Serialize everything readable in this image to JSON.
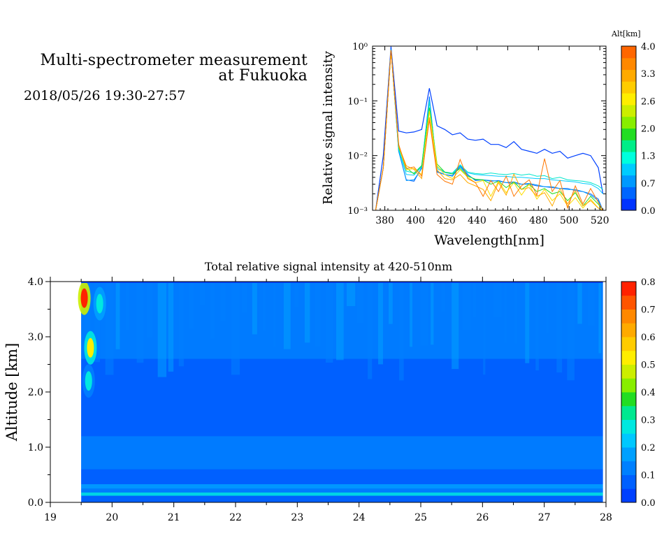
{
  "header": {
    "title_line1": "Multi-spectrometer measurement",
    "title_line2": "at Fukuoka",
    "date_range": "2018/05/26 19:30-27:57"
  },
  "chart_data": [
    {
      "type": "line",
      "title": "",
      "xlabel": "Wavelength[nm]",
      "ylabel": "Relative signal intensity",
      "xlim": [
        372,
        524
      ],
      "ylim": [
        0.001,
        1
      ],
      "yscale": "log",
      "x_ticks": [
        "380",
        "400",
        "420",
        "440",
        "460",
        "480",
        "500",
        "520"
      ],
      "y_ticks": [
        "10⁻³",
        "10⁻²",
        "10⁻¹",
        "10⁰"
      ],
      "grid": false,
      "colorbar": {
        "label": "Alt[km]",
        "ticks": [
          "0.0",
          "0.7",
          "1.3",
          "2.0",
          "2.6",
          "3.3",
          "4.0"
        ],
        "colors": [
          "#0033ff",
          "#0066ff",
          "#0099ff",
          "#00ccff",
          "#00ffdd",
          "#00ee88",
          "#22dd22",
          "#88ee00",
          "#ccee00",
          "#ffee00",
          "#ffcc00",
          "#ffaa00",
          "#ff8800",
          "#ff6600"
        ]
      },
      "x": [
        374,
        379,
        384,
        389,
        394,
        399,
        404,
        409,
        414,
        419,
        424,
        429,
        434,
        439,
        444,
        449,
        454,
        459,
        464,
        469,
        474,
        479,
        484,
        489,
        494,
        499,
        504,
        509,
        514,
        519,
        522
      ],
      "series": [
        {
          "alt_km": 0.0,
          "color": "#0040ff",
          "values": [
            0.001,
            0.01,
            0.98,
            0.028,
            0.026,
            0.027,
            0.03,
            0.17,
            0.035,
            0.03,
            0.024,
            0.026,
            0.02,
            0.019,
            0.02,
            0.016,
            0.016,
            0.014,
            0.018,
            0.013,
            0.012,
            0.011,
            0.013,
            0.011,
            0.012,
            0.009,
            0.01,
            0.011,
            0.01,
            0.006,
            0.002
          ]
        },
        {
          "alt_km": 0.3,
          "color": "#0066ff",
          "values": [
            0.001,
            0.006,
            0.9,
            0.012,
            0.0036,
            0.0034,
            0.006,
            0.12,
            0.005,
            0.0045,
            0.0043,
            0.0065,
            0.0045,
            0.0035,
            0.0036,
            0.0034,
            0.0035,
            0.0032,
            0.0033,
            0.003,
            0.003,
            0.0028,
            0.0027,
            0.0026,
            0.0025,
            0.0025,
            0.0023,
            0.0022,
            0.002,
            0.0016,
            0.001
          ]
        },
        {
          "alt_km": 0.7,
          "color": "#0099ff",
          "values": [
            0.001,
            0.006,
            0.88,
            0.012,
            0.0035,
            0.0036,
            0.0058,
            0.11,
            0.0052,
            0.0045,
            0.0042,
            0.0062,
            0.0044,
            0.0036,
            0.0036,
            0.0035,
            0.0034,
            0.0032,
            0.0031,
            0.003,
            0.0031,
            0.0029,
            0.0027,
            0.0027,
            0.0025,
            0.0024,
            0.0024,
            0.0022,
            0.0019,
            0.0015,
            0.001
          ]
        },
        {
          "alt_km": 1.0,
          "color": "#00ccff",
          "values": [
            0.001,
            0.006,
            0.86,
            0.013,
            0.0045,
            0.0044,
            0.0062,
            0.1,
            0.0058,
            0.0049,
            0.0046,
            0.0066,
            0.0048,
            0.0045,
            0.0044,
            0.0043,
            0.0042,
            0.0042,
            0.004,
            0.004,
            0.0039,
            0.0038,
            0.0038,
            0.0036,
            0.0035,
            0.0034,
            0.0033,
            0.0031,
            0.003,
            0.0025,
            0.002
          ]
        },
        {
          "alt_km": 1.3,
          "color": "#00e6cc",
          "values": [
            0.001,
            0.006,
            0.84,
            0.013,
            0.0052,
            0.0048,
            0.0066,
            0.095,
            0.0062,
            0.005,
            0.0048,
            0.0068,
            0.005,
            0.0047,
            0.0046,
            0.0048,
            0.0046,
            0.0045,
            0.0047,
            0.0044,
            0.0046,
            0.0042,
            0.0043,
            0.0038,
            0.004,
            0.0036,
            0.0035,
            0.0034,
            0.0032,
            0.0028,
            0.0024
          ]
        },
        {
          "alt_km": 2.0,
          "color": "#22dd22",
          "values": [
            0.001,
            0.006,
            0.84,
            0.014,
            0.006,
            0.0046,
            0.0065,
            0.075,
            0.007,
            0.005,
            0.0046,
            0.0058,
            0.0042,
            0.0037,
            0.0036,
            0.003,
            0.0034,
            0.0026,
            0.0033,
            0.0024,
            0.003,
            0.0022,
            0.0025,
            0.002,
            0.0022,
            0.0015,
            0.0021,
            0.0012,
            0.0018,
            0.0013,
            0.001
          ]
        },
        {
          "alt_km": 2.6,
          "color": "#ffdd00",
          "values": [
            0.001,
            0.006,
            0.84,
            0.015,
            0.0055,
            0.0058,
            0.0045,
            0.065,
            0.0065,
            0.0045,
            0.0038,
            0.0055,
            0.004,
            0.0032,
            0.0035,
            0.0018,
            0.0034,
            0.0021,
            0.0032,
            0.0019,
            0.003,
            0.0016,
            0.0024,
            0.0015,
            0.002,
            0.0012,
            0.0017,
            0.0011,
            0.0016,
            0.0011,
            0.001
          ]
        },
        {
          "alt_km": 3.3,
          "color": "#ffaa00",
          "values": [
            0.001,
            0.006,
            0.84,
            0.015,
            0.0065,
            0.0056,
            0.0038,
            0.05,
            0.0055,
            0.0038,
            0.0036,
            0.0045,
            0.0032,
            0.0028,
            0.0024,
            0.0015,
            0.0032,
            0.0019,
            0.0046,
            0.0024,
            0.0026,
            0.0018,
            0.0021,
            0.0012,
            0.0025,
            0.0013,
            0.0023,
            0.0012,
            0.0015,
            0.0011,
            0.001
          ]
        },
        {
          "alt_km": 4.0,
          "color": "#ff7700",
          "values": [
            0.001,
            0.006,
            0.84,
            0.016,
            0.0058,
            0.0062,
            0.0042,
            0.045,
            0.0045,
            0.0034,
            0.003,
            0.0085,
            0.0038,
            0.0032,
            0.0018,
            0.0035,
            0.0022,
            0.0042,
            0.0018,
            0.0028,
            0.0036,
            0.0019,
            0.0088,
            0.0022,
            0.0035,
            0.0011,
            0.0028,
            0.0013,
            0.0025,
            0.0014,
            0.001
          ]
        }
      ]
    },
    {
      "type": "heatmap",
      "title": "Total relative signal intensity at 420-510nm",
      "xlabel": "",
      "ylabel": "Altitude [km]",
      "xlim": [
        19,
        28
      ],
      "ylim": [
        0,
        4
      ],
      "x_ticks": [
        "19",
        "20",
        "21",
        "22",
        "23",
        "24",
        "25",
        "26",
        "27",
        "28"
      ],
      "y_ticks": [
        "0.0",
        "1.0",
        "2.0",
        "3.0",
        "4.0"
      ],
      "data_x_range": [
        19.5,
        27.95
      ],
      "colorbar": {
        "ticks": [
          "0.0",
          "0.1",
          "0.2",
          "0.3",
          "0.4",
          "0.5",
          "0.6",
          "0.7",
          "0.8"
        ],
        "colors": [
          "#0040ff",
          "#0060ff",
          "#0080ff",
          "#00a0ff",
          "#00c8ff",
          "#00e8e0",
          "#00e890",
          "#22dd22",
          "#88ee00",
          "#ccee00",
          "#ffee00",
          "#ffcc00",
          "#ffaa00",
          "#ff8800",
          "#ff5500",
          "#ff2200"
        ]
      },
      "bands": [
        {
          "alt_km": [
            0.12,
            0.18
          ],
          "value": 0.3
        },
        {
          "alt_km": [
            0.18,
            0.25
          ],
          "value": 0.15
        },
        {
          "alt_km": [
            0.25,
            0.33
          ],
          "value": 0.18
        },
        {
          "alt_km": [
            0.33,
            0.6
          ],
          "value": 0.08
        },
        {
          "alt_km": [
            0.6,
            1.2
          ],
          "value": 0.13
        },
        {
          "alt_km": [
            1.2,
            2.6
          ],
          "value": 0.09
        },
        {
          "alt_km": [
            2.6,
            4.0
          ],
          "value": 0.12
        }
      ],
      "hotspots": [
        {
          "time": 19.55,
          "alt_km": 3.7,
          "value": 0.8
        },
        {
          "time": 19.65,
          "alt_km": 2.8,
          "value": 0.5
        },
        {
          "time": 19.62,
          "alt_km": 2.2,
          "value": 0.25
        },
        {
          "time": 19.8,
          "alt_km": 3.6,
          "value": 0.3
        }
      ]
    }
  ]
}
